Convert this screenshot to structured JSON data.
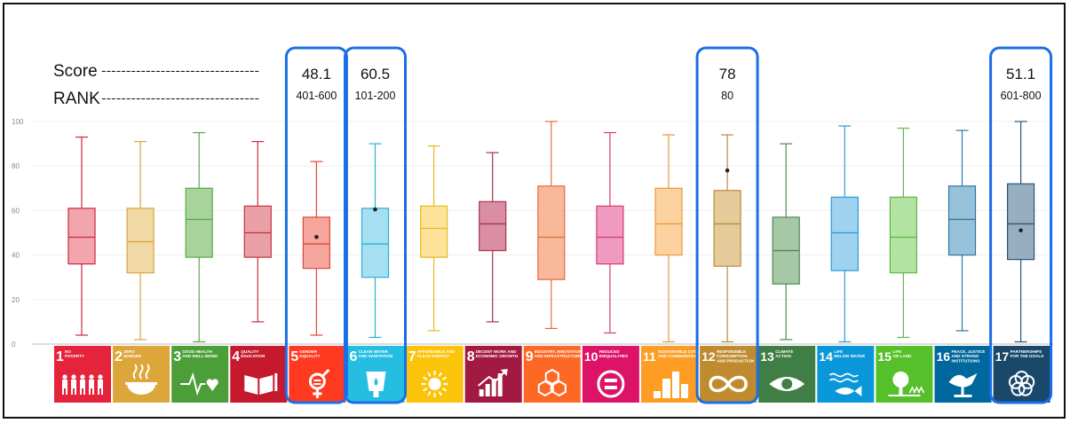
{
  "legend": {
    "score_label": "Score",
    "rank_label": "RANK",
    "dashes": "--------------------------------"
  },
  "colors": {
    "highlight": "#1a6ee6",
    "axis": "#bbbbbb",
    "grid": "#efefef",
    "tick_text": "#888888"
  },
  "chart_data": {
    "type": "boxplot",
    "title": "",
    "xlabel": "",
    "ylabel": "",
    "ylim": [
      0,
      100
    ],
    "yticks": [
      0,
      20,
      40,
      60,
      80,
      100
    ],
    "grid": true,
    "categories": [
      {
        "num": "1",
        "lines": [
          "NO",
          "POVERTY"
        ],
        "color": "#e5243b",
        "fill": "#f3a5ad",
        "stroke": "#c9293f",
        "min": 4,
        "q1": 36,
        "median": 48,
        "q3": 61,
        "max": 93,
        "icon": "people"
      },
      {
        "num": "2",
        "lines": [
          "ZERO",
          "HUNGER"
        ],
        "color": "#dda63a",
        "fill": "#f1d9a6",
        "stroke": "#d9a53c",
        "min": 2,
        "q1": 32,
        "median": 46,
        "q3": 61,
        "max": 91,
        "icon": "bowl"
      },
      {
        "num": "3",
        "lines": [
          "GOOD HEALTH",
          "AND WELL-BEING"
        ],
        "color": "#4c9f38",
        "fill": "#a8d49c",
        "stroke": "#5aa84a",
        "min": 1,
        "q1": 39,
        "median": 56,
        "q3": 70,
        "max": 95,
        "icon": "pulse"
      },
      {
        "num": "4",
        "lines": [
          "QUALITY",
          "EDUCATION"
        ],
        "color": "#c5192d",
        "fill": "#eaa1a6",
        "stroke": "#c4323f",
        "min": 10,
        "q1": 39,
        "median": 50,
        "q3": 62,
        "max": 91,
        "icon": "book"
      },
      {
        "num": "5",
        "lines": [
          "GENDER",
          "EQUALITY"
        ],
        "color": "#ff3a21",
        "fill": "#f6a69c",
        "stroke": "#e0463a",
        "min": 4,
        "q1": 34,
        "median": 45,
        "q3": 57,
        "max": 82,
        "score": 48.1,
        "rank": "401-600",
        "icon": "gender"
      },
      {
        "num": "6",
        "lines": [
          "CLEAN WATER",
          "AND SANITATION"
        ],
        "color": "#26bde2",
        "fill": "#a6dff0",
        "stroke": "#2ab0d8",
        "min": 3,
        "q1": 30,
        "median": 45,
        "q3": 61,
        "max": 90,
        "score": 60.5,
        "rank": "101-200",
        "icon": "water"
      },
      {
        "num": "7",
        "lines": [
          "AFFORDABLE AND",
          "CLEAN ENERGY"
        ],
        "color": "#fcc30b",
        "fill": "#fde39a",
        "stroke": "#e8b820",
        "min": 6,
        "q1": 39,
        "median": 52,
        "q3": 62,
        "max": 89,
        "icon": "sun"
      },
      {
        "num": "8",
        "lines": [
          "DECENT WORK AND",
          "ECONOMIC GROWTH"
        ],
        "color": "#a21942",
        "fill": "#d98ea3",
        "stroke": "#a8324f",
        "min": 10,
        "q1": 42,
        "median": 54,
        "q3": 64,
        "max": 86,
        "icon": "growth"
      },
      {
        "num": "9",
        "lines": [
          "INDUSTRY, INNOVATION",
          "AND INFRASTRUCTURE"
        ],
        "color": "#fd6925",
        "fill": "#f8b89a",
        "stroke": "#e86a3a",
        "min": 7,
        "q1": 29,
        "median": 48,
        "q3": 71,
        "max": 100,
        "icon": "cubes"
      },
      {
        "num": "10",
        "lines": [
          "REDUCED",
          "INEQUALITIES"
        ],
        "color": "#dd1367",
        "fill": "#f19ac0",
        "stroke": "#d53a78",
        "min": 5,
        "q1": 36,
        "median": 48,
        "q3": 62,
        "max": 95,
        "icon": "equal"
      },
      {
        "num": "11",
        "lines": [
          "SUSTAINABLE CITIES",
          "AND COMMUNITIES"
        ],
        "color": "#fd9d24",
        "fill": "#fcd3a0",
        "stroke": "#e99a3a",
        "min": 1,
        "q1": 40,
        "median": 54,
        "q3": 70,
        "max": 94,
        "icon": "city"
      },
      {
        "num": "12",
        "lines": [
          "RESPONSIBLE",
          "CONSUMPTION",
          "AND PRODUCTION"
        ],
        "color": "#bf8b2e",
        "fill": "#e6cb9a",
        "stroke": "#b98a3c",
        "min": 1,
        "q1": 35,
        "median": 54,
        "q3": 69,
        "max": 94,
        "score": 78,
        "rank": "80",
        "icon": "infinity"
      },
      {
        "num": "13",
        "lines": [
          "CLIMATE",
          "ACTION"
        ],
        "color": "#3f7e44",
        "fill": "#a6c8a6",
        "stroke": "#4f8a52",
        "min": 2,
        "q1": 27,
        "median": 42,
        "q3": 57,
        "max": 90,
        "icon": "eye"
      },
      {
        "num": "14",
        "lines": [
          "LIFE",
          "BELOW WATER"
        ],
        "color": "#0a97d9",
        "fill": "#9ed2ee",
        "stroke": "#2a9ad8",
        "min": 1,
        "q1": 33,
        "median": 50,
        "q3": 66,
        "max": 98,
        "icon": "fish"
      },
      {
        "num": "15",
        "lines": [
          "LIFE",
          "ON LAND"
        ],
        "color": "#56c02b",
        "fill": "#b3e3a0",
        "stroke": "#62b648",
        "min": 3,
        "q1": 32,
        "median": 48,
        "q3": 66,
        "max": 97,
        "icon": "tree"
      },
      {
        "num": "16",
        "lines": [
          "PEACE, JUSTICE",
          "AND STRONG",
          "INSTITUTIONS"
        ],
        "color": "#00689d",
        "fill": "#98c2da",
        "stroke": "#2f77a6",
        "min": 6,
        "q1": 40,
        "median": 56,
        "q3": 71,
        "max": 96,
        "icon": "dove"
      },
      {
        "num": "17",
        "lines": [
          "PARTNERSHIPS",
          "FOR THE GOALS"
        ],
        "color": "#19486a",
        "fill": "#97adc0",
        "stroke": "#2b5578",
        "min": 1,
        "q1": 38,
        "median": 54,
        "q3": 72,
        "max": 100,
        "score": 51.1,
        "rank": "601-800",
        "icon": "flower"
      }
    ]
  }
}
